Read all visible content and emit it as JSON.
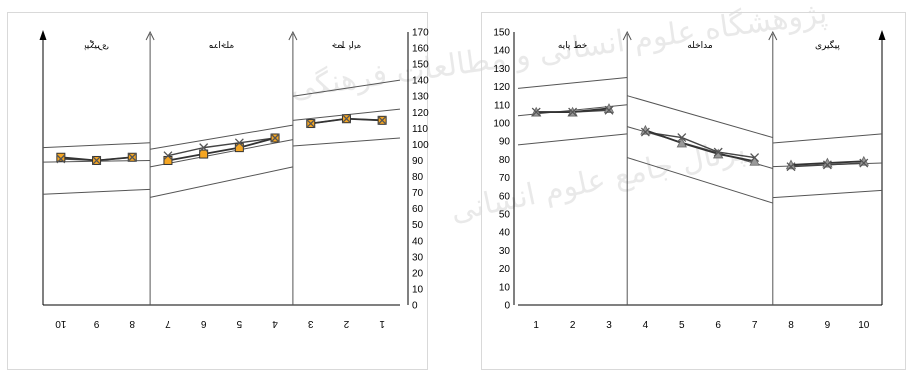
{
  "watermark": {
    "line1": "پژوهشگاه علوم انسانی و مطالعات فرهنگی",
    "line2": "پرتال جامع علوم انسانی"
  },
  "chart_data": [
    {
      "type": "line",
      "x": [
        1,
        2,
        3,
        4,
        5,
        6,
        7,
        8,
        9,
        10
      ],
      "ylim": [
        0,
        170
      ],
      "xlim": [
        0.5,
        10.5
      ],
      "x_reversed": true,
      "y_axis_side": "right",
      "yticks": [
        0,
        10,
        20,
        30,
        40,
        50,
        60,
        70,
        80,
        90,
        100,
        110,
        120,
        130,
        140,
        150,
        160,
        170
      ],
      "xticks": [
        "1",
        "2",
        "3",
        "4",
        "5",
        "6",
        "7",
        "8",
        "9",
        "10"
      ],
      "phase_dividers": [
        3.5,
        7.5
      ],
      "phases": [
        {
          "label": "خط پایه",
          "x_start": 0.5,
          "x_end": 3.5
        },
        {
          "label": "مداخله",
          "x_start": 3.5,
          "x_end": 7.5
        },
        {
          "label": "پیگیری",
          "x_start": 7.5,
          "x_end": 10.5
        }
      ],
      "series": [
        {
          "marker": "x",
          "color": "#555555",
          "values": [
            115,
            116,
            113,
            104,
            101,
            98,
            93,
            92,
            90,
            91
          ]
        },
        {
          "marker": "square",
          "color": "#f5a623",
          "values": [
            115,
            116,
            113,
            104,
            98,
            94,
            90,
            92,
            90,
            92
          ]
        }
      ],
      "bands": [
        {
          "color": "#555555",
          "segments": [
            [
              0.5,
              3.5,
              140,
              130
            ],
            [
              3.5,
              7.5,
              112,
              97
            ],
            [
              7.5,
              10.5,
              101,
              98
            ]
          ]
        },
        {
          "color": "#555555",
          "segments": [
            [
              0.5,
              3.5,
              122,
              115
            ],
            [
              3.5,
              7.5,
              103,
              86
            ],
            [
              7.5,
              10.5,
              90,
              89
            ]
          ]
        },
        {
          "color": "#555555",
          "segments": [
            [
              0.5,
              3.5,
              104,
              99
            ],
            [
              3.5,
              7.5,
              86,
              67
            ],
            [
              7.5,
              10.5,
              72,
              69
            ]
          ]
        }
      ]
    },
    {
      "type": "line",
      "x": [
        1,
        2,
        3,
        4,
        5,
        6,
        7,
        8,
        9,
        10
      ],
      "ylim": [
        0,
        150
      ],
      "xlim": [
        0.5,
        10.5
      ],
      "x_reversed": false,
      "y_axis_side": "left",
      "yticks": [
        0,
        10,
        20,
        30,
        40,
        50,
        60,
        70,
        80,
        90,
        100,
        110,
        120,
        130,
        140,
        150
      ],
      "xticks": [
        "1",
        "2",
        "3",
        "4",
        "5",
        "6",
        "7",
        "8",
        "9",
        "10"
      ],
      "phase_dividers": [
        3.5,
        7.5
      ],
      "phases": [
        {
          "label": "خط پایه",
          "x_start": 0.5,
          "x_end": 3.5
        },
        {
          "label": "مداخله",
          "x_start": 3.5,
          "x_end": 7.5
        },
        {
          "label": "پیگیری",
          "x_start": 7.5,
          "x_end": 10.5
        }
      ],
      "series": [
        {
          "marker": "x",
          "color": "#555555",
          "values": [
            106,
            106,
            107,
            95,
            92,
            84,
            81,
            76,
            77,
            78
          ]
        },
        {
          "marker": "triangle",
          "color": "#999999",
          "values": [
            106,
            106,
            108,
            96,
            89,
            83,
            79,
            77,
            78,
            79
          ]
        }
      ],
      "bands": [
        {
          "color": "#555555",
          "segments": [
            [
              0.5,
              3.5,
              119,
              125
            ],
            [
              3.5,
              7.5,
              115,
              92
            ],
            [
              7.5,
              10.5,
              89,
              94
            ]
          ]
        },
        {
          "color": "#555555",
          "segments": [
            [
              0.5,
              3.5,
              104,
              110
            ],
            [
              3.5,
              7.5,
              98,
              75
            ],
            [
              7.5,
              10.5,
              76,
              78
            ]
          ]
        },
        {
          "color": "#555555",
          "segments": [
            [
              0.5,
              3.5,
              88,
              94
            ],
            [
              3.5,
              7.5,
              81,
              56
            ],
            [
              7.5,
              10.5,
              59,
              63
            ]
          ]
        }
      ]
    }
  ]
}
